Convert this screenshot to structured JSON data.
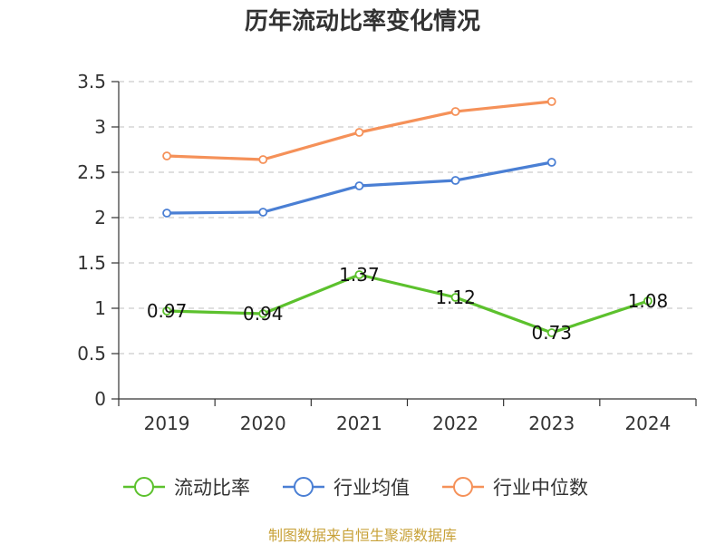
{
  "chart_data": {
    "type": "line",
    "title": "历年流动比率变化情况",
    "categories": [
      "2019",
      "2020",
      "2021",
      "2022",
      "2023",
      "2024"
    ],
    "ylim": [
      0,
      3.5
    ],
    "yticks": [
      0,
      0.5,
      1,
      1.5,
      2,
      2.5,
      3,
      3.5
    ],
    "ytick_labels": [
      "0",
      "0.5",
      "1",
      "1.5",
      "2",
      "2.5",
      "3",
      "3.5"
    ],
    "grid": true,
    "legend_position": "bottom",
    "series": [
      {
        "name": "流动比率",
        "color": "#5cc12d",
        "values": [
          0.97,
          0.94,
          1.37,
          1.12,
          0.73,
          1.08
        ],
        "labels": [
          "0.97",
          "0.94",
          "1.37",
          "1.12",
          "0.73",
          "1.08"
        ],
        "show_labels": true
      },
      {
        "name": "行业均值",
        "color": "#4a7fd4",
        "values": [
          2.05,
          2.06,
          2.35,
          2.41,
          2.61,
          null
        ],
        "show_labels": false
      },
      {
        "name": "行业中位数",
        "color": "#f59159",
        "values": [
          2.68,
          2.64,
          2.94,
          3.17,
          3.28,
          null
        ],
        "show_labels": false
      }
    ]
  },
  "source_text": "制图数据来自恒生聚源数据库"
}
